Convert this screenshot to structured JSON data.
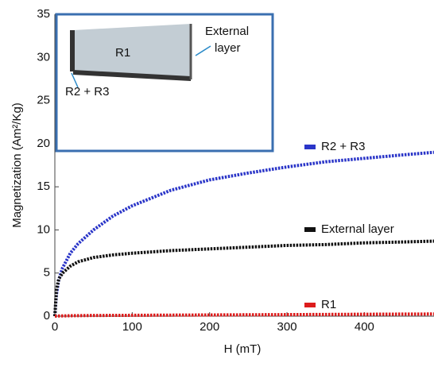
{
  "chart_data": {
    "type": "line",
    "x_label": "H (mT)",
    "y_label": "Magnetization (Am²/Kg)",
    "x": [
      0,
      2,
      5,
      10,
      20,
      30,
      50,
      75,
      100,
      150,
      200,
      250,
      300,
      350,
      400,
      450,
      490
    ],
    "series": [
      {
        "name": "R2 + R3",
        "color": "#2a35c8",
        "values": [
          0,
          2.5,
          4.2,
          5.6,
          7.3,
          8.4,
          10.0,
          11.6,
          12.8,
          14.6,
          15.8,
          16.6,
          17.3,
          17.9,
          18.3,
          18.7,
          19.0
        ]
      },
      {
        "name": "External layer",
        "color": "#111111",
        "values": [
          0,
          3.0,
          4.3,
          5.0,
          5.8,
          6.3,
          6.8,
          7.1,
          7.3,
          7.6,
          7.8,
          8.0,
          8.2,
          8.3,
          8.5,
          8.6,
          8.7
        ]
      },
      {
        "name": "R1",
        "color": "#dd1c1c",
        "values": [
          0,
          0.01,
          0.02,
          0.03,
          0.05,
          0.06,
          0.08,
          0.09,
          0.1,
          0.12,
          0.14,
          0.16,
          0.18,
          0.2,
          0.22,
          0.24,
          0.25
        ]
      }
    ],
    "xlim": [
      0,
      490
    ],
    "ylim": [
      0,
      35
    ],
    "xticks": [
      0,
      100,
      200,
      300,
      400
    ],
    "yticks": [
      0,
      5,
      10,
      15,
      20,
      25,
      30,
      35
    ],
    "inset_labels": [
      "R1",
      "External",
      "layer",
      "R2 + R3"
    ]
  }
}
